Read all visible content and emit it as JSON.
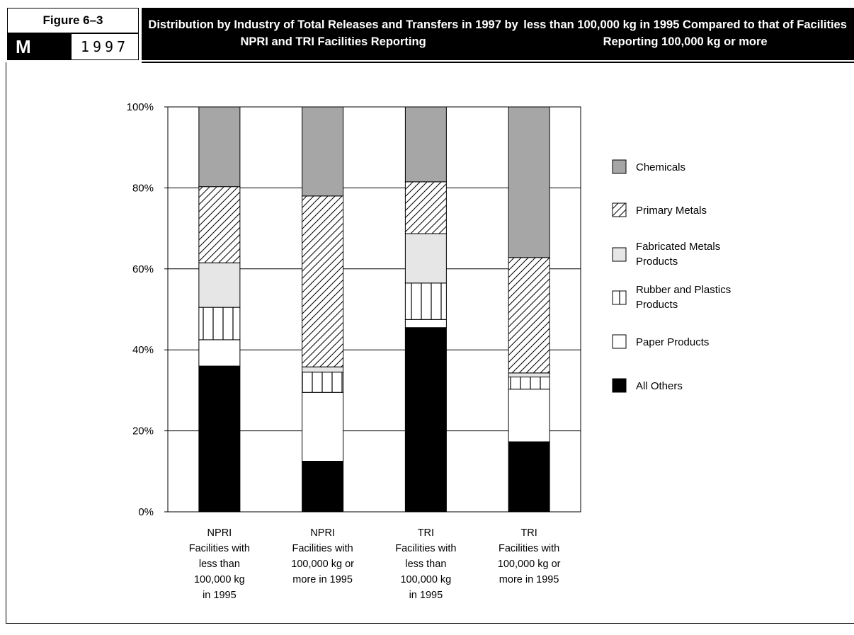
{
  "header": {
    "figure_label": "Figure 6–3",
    "code_letter": "M",
    "year": "1997",
    "title_line1": "Distribution by Industry of Total Releases and Transfers in 1997 by NPRI and TRI Facilities Reporting",
    "title_line2": "less than 100,000 kg in 1995 Compared to that of Facilities Reporting 100,000 kg or more"
  },
  "chart_data": {
    "type": "bar",
    "stacked": true,
    "percent_stacked": true,
    "ylim": [
      0,
      100
    ],
    "y_ticks": [
      "0%",
      "20%",
      "40%",
      "60%",
      "80%",
      "100%"
    ],
    "y_tick_values": [
      0,
      20,
      40,
      60,
      80,
      100
    ],
    "grid": true,
    "legend_position": "right",
    "categories": [
      [
        "NPRI",
        "Facilities with",
        "less than",
        "100,000 kg",
        "in 1995"
      ],
      [
        "NPRI",
        "Facilities with",
        "100,000 kg or",
        "more in 1995"
      ],
      [
        "TRI",
        "Facilities with",
        "less than",
        "100,000 kg",
        "in 1995"
      ],
      [
        "TRI",
        "Facilities with",
        "100,000 kg or",
        "more in 1995"
      ]
    ],
    "series": [
      {
        "name": "All Others",
        "pattern": "solid-black",
        "values": [
          36,
          12.5,
          45.5,
          17.3
        ]
      },
      {
        "name": "Paper Products",
        "pattern": "white",
        "values": [
          6.5,
          17,
          2,
          13
        ]
      },
      {
        "name": "Rubber and Plastics Products",
        "pattern": "vertical-lines",
        "values": [
          8,
          5,
          9,
          3
        ]
      },
      {
        "name": "Fabricated Metals Products",
        "pattern": "light-gray",
        "values": [
          11,
          1.3,
          12.2,
          1
        ]
      },
      {
        "name": "Primary Metals",
        "pattern": "diagonal-hatch",
        "values": [
          18.8,
          42.2,
          12.8,
          28.5
        ]
      },
      {
        "name": "Chemicals",
        "pattern": "medium-gray",
        "values": [
          19.7,
          22,
          18.5,
          37.2
        ]
      }
    ],
    "legend": [
      {
        "name": "Chemicals",
        "pattern": "medium-gray"
      },
      {
        "name": "Primary Metals",
        "pattern": "diagonal-hatch"
      },
      {
        "name": "Fabricated Metals Products",
        "pattern": "light-gray",
        "lines": [
          "Fabricated Metals",
          "Products"
        ]
      },
      {
        "name": "Rubber and Plastics Products",
        "pattern": "vertical-lines",
        "lines": [
          "Rubber and Plastics",
          "Products"
        ]
      },
      {
        "name": "Paper Products",
        "pattern": "white"
      },
      {
        "name": "All Others",
        "pattern": "solid-black"
      }
    ],
    "colors": {
      "medium-gray": "#a6a6a6",
      "light-gray": "#e6e6e6",
      "solid-black": "#000000",
      "white": "#ffffff"
    }
  }
}
